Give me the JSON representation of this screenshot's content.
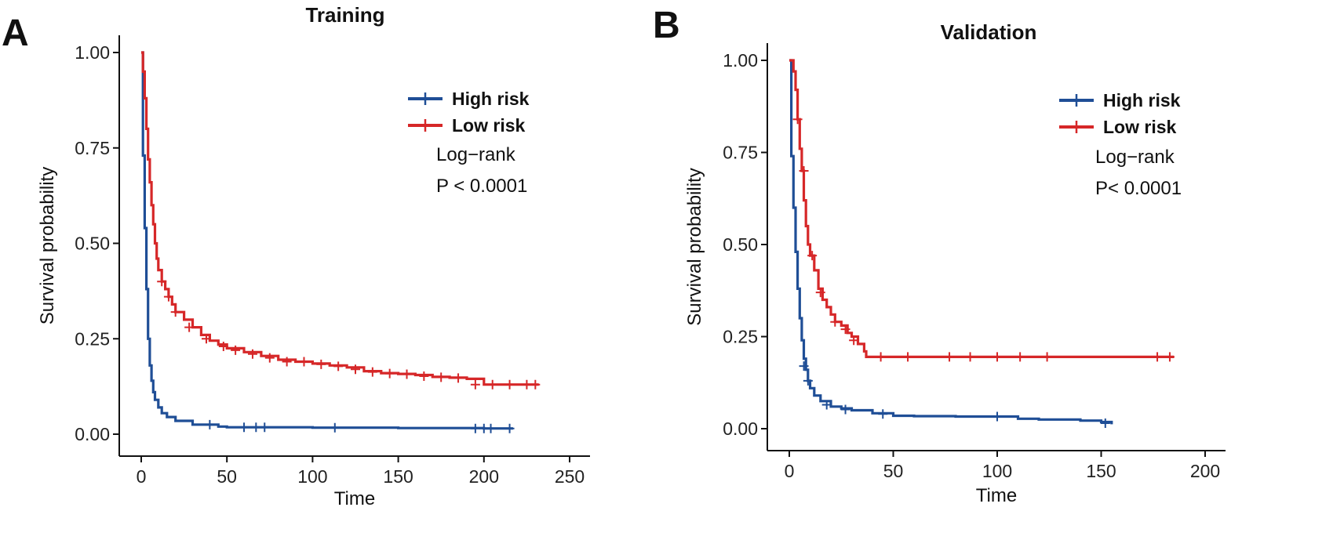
{
  "chart_data": [
    {
      "type": "line",
      "panel_letter": "A",
      "title": "Training",
      "xlabel": "Time",
      "ylabel": "Survival probability",
      "xlim": [
        0,
        250
      ],
      "ylim": [
        0,
        1
      ],
      "xticks": [
        0,
        50,
        100,
        150,
        200,
        250
      ],
      "xtick_labels": [
        "0",
        "50",
        "100",
        "150",
        "200",
        "250"
      ],
      "yticks": [
        0,
        0.25,
        0.5,
        0.75,
        1
      ],
      "ytick_labels": [
        "0.00",
        "0.25",
        "0.50",
        "0.75",
        "1.00"
      ],
      "legend_position": "top-right",
      "annotation": [
        "Log−rank",
        "P < 0.0001"
      ],
      "series": [
        {
          "name": "High risk",
          "color": "#1f4e96",
          "x": [
            0,
            1,
            2,
            3,
            4,
            5,
            6,
            7,
            8,
            10,
            12,
            15,
            20,
            30,
            45,
            50,
            100,
            150,
            200,
            217
          ],
          "y": [
            1.0,
            0.73,
            0.54,
            0.38,
            0.25,
            0.18,
            0.14,
            0.11,
            0.09,
            0.07,
            0.055,
            0.045,
            0.035,
            0.025,
            0.02,
            0.018,
            0.017,
            0.016,
            0.015,
            0.015
          ],
          "censored_x": [
            40,
            60,
            67,
            72,
            113,
            195,
            200,
            204,
            215
          ],
          "censored_y": [
            0.025,
            0.018,
            0.018,
            0.018,
            0.017,
            0.015,
            0.015,
            0.015,
            0.015
          ]
        },
        {
          "name": "Low risk",
          "color": "#d62728",
          "x": [
            0,
            1,
            2,
            3,
            4,
            5,
            6,
            7,
            8,
            9,
            10,
            12,
            14,
            16,
            18,
            20,
            25,
            30,
            35,
            40,
            45,
            50,
            60,
            70,
            80,
            90,
            100,
            110,
            120,
            130,
            140,
            150,
            160,
            170,
            180,
            190,
            200,
            210,
            220,
            232
          ],
          "y": [
            1.0,
            0.95,
            0.88,
            0.8,
            0.72,
            0.66,
            0.6,
            0.55,
            0.5,
            0.46,
            0.43,
            0.4,
            0.38,
            0.36,
            0.34,
            0.32,
            0.3,
            0.28,
            0.26,
            0.245,
            0.235,
            0.225,
            0.215,
            0.205,
            0.195,
            0.19,
            0.185,
            0.18,
            0.175,
            0.165,
            0.16,
            0.158,
            0.155,
            0.15,
            0.148,
            0.145,
            0.13,
            0.13,
            0.13,
            0.13
          ],
          "censored_x": [
            12,
            16,
            20,
            28,
            38,
            48,
            55,
            65,
            75,
            85,
            95,
            105,
            115,
            125,
            135,
            145,
            155,
            165,
            175,
            185,
            195,
            205,
            215,
            225,
            230
          ],
          "censored_y": [
            0.4,
            0.36,
            0.32,
            0.28,
            0.25,
            0.23,
            0.22,
            0.21,
            0.2,
            0.19,
            0.19,
            0.183,
            0.178,
            0.17,
            0.163,
            0.159,
            0.157,
            0.152,
            0.149,
            0.147,
            0.13,
            0.13,
            0.13,
            0.13,
            0.13
          ]
        }
      ]
    },
    {
      "type": "line",
      "panel_letter": "B",
      "title": "Validation",
      "xlabel": "Time",
      "ylabel": "Survival probability",
      "xlim": [
        0,
        200
      ],
      "ylim": [
        0,
        1
      ],
      "xticks": [
        0,
        50,
        100,
        150,
        200
      ],
      "xtick_labels": [
        "0",
        "50",
        "100",
        "150",
        "200"
      ],
      "yticks": [
        0,
        0.25,
        0.5,
        0.75,
        1
      ],
      "ytick_labels": [
        "0.00",
        "0.25",
        "0.50",
        "0.75",
        "1.00"
      ],
      "legend_position": "top-right",
      "annotation": [
        "Log−rank",
        "P< 0.0001"
      ],
      "series": [
        {
          "name": "High risk",
          "color": "#1f4e96",
          "x": [
            0,
            1,
            2,
            3,
            4,
            5,
            6,
            7,
            8,
            9,
            10,
            12,
            15,
            20,
            25,
            30,
            40,
            50,
            60,
            80,
            100,
            110,
            120,
            140,
            150,
            155
          ],
          "y": [
            1.0,
            0.74,
            0.6,
            0.48,
            0.38,
            0.3,
            0.24,
            0.19,
            0.16,
            0.13,
            0.11,
            0.09,
            0.075,
            0.06,
            0.055,
            0.05,
            0.042,
            0.035,
            0.034,
            0.033,
            0.033,
            0.027,
            0.025,
            0.022,
            0.018,
            0.012
          ],
          "censored_x": [
            7,
            9,
            18,
            27,
            45,
            100,
            152
          ],
          "censored_y": [
            0.17,
            0.13,
            0.065,
            0.052,
            0.04,
            0.033,
            0.015
          ]
        },
        {
          "name": "Low risk",
          "color": "#d62728",
          "x": [
            0,
            1,
            2,
            3,
            4,
            5,
            6,
            7,
            8,
            9,
            10,
            12,
            14,
            16,
            18,
            20,
            22,
            25,
            28,
            30,
            33,
            36,
            37,
            50,
            100,
            150,
            185
          ],
          "y": [
            1.0,
            1.0,
            0.97,
            0.92,
            0.84,
            0.76,
            0.7,
            0.62,
            0.55,
            0.5,
            0.47,
            0.43,
            0.38,
            0.35,
            0.33,
            0.31,
            0.29,
            0.28,
            0.26,
            0.25,
            0.23,
            0.21,
            0.195,
            0.195,
            0.195,
            0.195,
            0.195
          ],
          "censored_x": [
            4,
            7,
            11,
            15,
            22,
            27,
            31,
            44,
            57,
            77,
            87,
            100,
            111,
            124,
            177,
            183
          ],
          "censored_y": [
            0.84,
            0.7,
            0.47,
            0.37,
            0.29,
            0.27,
            0.24,
            0.195,
            0.195,
            0.195,
            0.195,
            0.195,
            0.195,
            0.195,
            0.195,
            0.195
          ]
        }
      ]
    }
  ]
}
